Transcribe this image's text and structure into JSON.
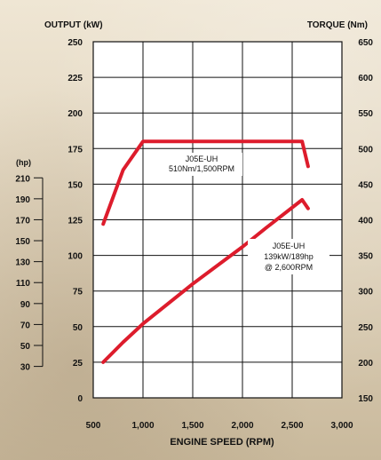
{
  "chart_data": {
    "type": "line",
    "left_axis_label": "OUTPUT (kW)",
    "right_axis_label": "TORQUE (Nm)",
    "hp_axis_label": "(hp)",
    "xlabel": "ENGINE SPEED (RPM)",
    "xlim": [
      500,
      3000
    ],
    "ylim_left": [
      0,
      250
    ],
    "ylim_right": [
      150,
      650
    ],
    "x_ticks": [
      "500",
      "1,000",
      "1,500",
      "2,000",
      "2,500",
      "3,000"
    ],
    "left_ticks": [
      "250",
      "225",
      "200",
      "175",
      "150",
      "125",
      "100",
      "75",
      "50",
      "25",
      "0"
    ],
    "right_ticks": [
      "650",
      "600",
      "550",
      "500",
      "450",
      "400",
      "350",
      "300",
      "250",
      "200",
      "150"
    ],
    "hp_ticks": [
      "210",
      "190",
      "170",
      "150",
      "130",
      "110",
      "90",
      "70",
      "50",
      "30"
    ],
    "grid": true,
    "series": [
      {
        "name": "J05E-UH 510Nm/1,500RPM",
        "axis": "right",
        "color": "#dd1c2c",
        "x": [
          600,
          800,
          1000,
          1500,
          2000,
          2600,
          2660
        ],
        "y": [
          394,
          470,
          510,
          510,
          510,
          510,
          475
        ]
      },
      {
        "name": "J05E-UH 139kW/189hp @ 2,600RPM",
        "axis": "left",
        "color": "#dd1c2c",
        "x": [
          600,
          800,
          1000,
          1500,
          2000,
          2250,
          2600,
          2660
        ],
        "y": [
          25,
          39,
          52,
          80,
          106,
          120,
          139,
          133
        ]
      }
    ],
    "annotations": [
      {
        "lines": [
          "J05E-UH",
          "510Nm/1,500RPM"
        ]
      },
      {
        "lines": [
          "J05E-UH",
          "139kW/189hp",
          "@ 2,600RPM"
        ]
      }
    ]
  }
}
